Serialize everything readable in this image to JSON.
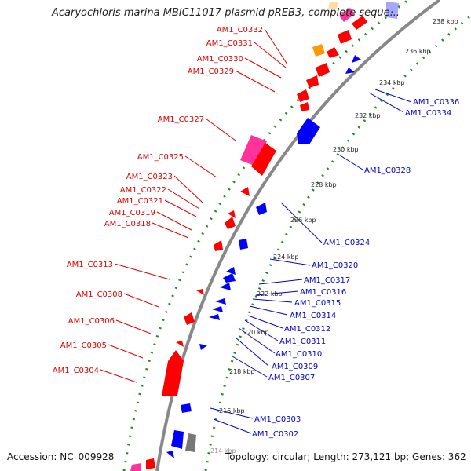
{
  "title": "Acaryochloris marina MBIC11017 plasmid pREB3, complete seque...",
  "accession_text": "Accession: NC_009928",
  "summary_text": "Topology: circular; Length: 273,121 bp; Genes: 362",
  "colors": {
    "forward": "#ff0000",
    "reverse": "#0000ff",
    "magenta": "#ff3399",
    "orange": "#ff9900",
    "gray": "#777777",
    "backbone": "#888888",
    "dots": "#228822",
    "label_forward": "#dd0000",
    "label_reverse": "#0000cc"
  },
  "left_labels": [
    "AM1_C0332",
    "AM1_C0331",
    "AM1_C0330",
    "AM1_C0329",
    "AM1_C0327",
    "AM1_C0325",
    "AM1_C0323",
    "AM1_C0322",
    "AM1_C0321",
    "AM1_C0319",
    "AM1_C0318",
    "AM1_C0313",
    "AM1_C0308",
    "AM1_C0306",
    "AM1_C0305",
    "AM1_C0304"
  ],
  "right_labels": [
    "AM1_C0336",
    "AM1_C0334",
    "AM1_C0328",
    "AM1_C0324",
    "AM1_C0320",
    "AM1_C0317",
    "AM1_C0316",
    "AM1_C0315",
    "AM1_C0314",
    "AM1_C0312",
    "AM1_C0311",
    "AM1_C0310",
    "AM1_C0309",
    "AM1_C0307",
    "AM1_C0303",
    "AM1_C0302"
  ],
  "ticks": [
    "238 kbp",
    "236 kbp",
    "234 kbp",
    "232 kbp",
    "230 kbp",
    "228 kbp",
    "226 kbp",
    "224 kbp",
    "222 kbp",
    "220 kbp",
    "218 kbp",
    "216 kbp",
    "214 kbp"
  ]
}
